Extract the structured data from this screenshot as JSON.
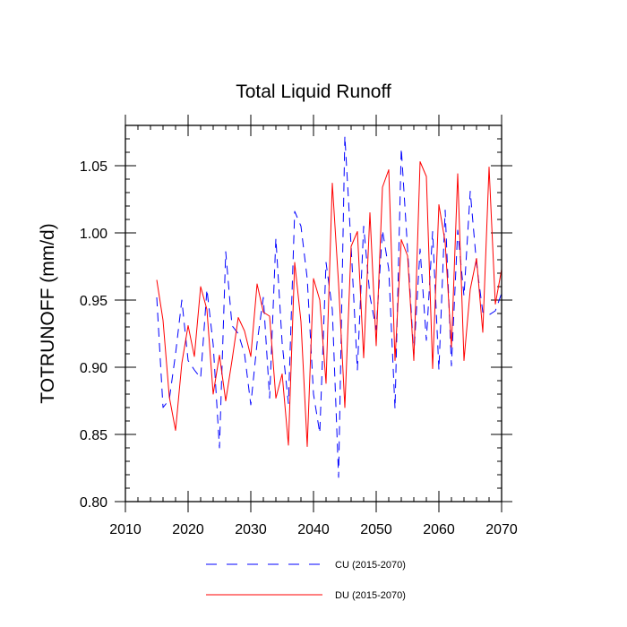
{
  "chart_data": {
    "type": "line",
    "title": "Total Liquid Runoff",
    "xlabel": "",
    "ylabel": "TOTRUNOFF  (mm/d)",
    "xlim": [
      2010,
      2070
    ],
    "ylim": [
      0.8,
      1.08
    ],
    "x_ticks": [
      2010,
      2020,
      2030,
      2040,
      2050,
      2060,
      2070
    ],
    "x_tick_labels": [
      "2010",
      "2020",
      "2030",
      "2040",
      "2050",
      "2060",
      "2070"
    ],
    "y_ticks": [
      0.8,
      0.85,
      0.9,
      0.95,
      1.0,
      1.05
    ],
    "y_tick_labels": [
      "0.80",
      "0.85",
      "0.90",
      "0.95",
      "1.00",
      "1.05"
    ],
    "grid": false,
    "legend": "bottom",
    "x": [
      2015,
      2016,
      2017,
      2018,
      2019,
      2020,
      2021,
      2022,
      2023,
      2024,
      2025,
      2026,
      2027,
      2028,
      2029,
      2030,
      2031,
      2032,
      2033,
      2034,
      2035,
      2036,
      2037,
      2038,
      2039,
      2040,
      2041,
      2042,
      2043,
      2044,
      2045,
      2046,
      2047,
      2048,
      2049,
      2050,
      2051,
      2052,
      2053,
      2054,
      2055,
      2056,
      2057,
      2058,
      2059,
      2060,
      2061,
      2062,
      2063,
      2064,
      2065,
      2066,
      2067,
      2068,
      2069,
      2070
    ],
    "series": [
      {
        "name": "CU (2015-2070)",
        "color": "#0000ff",
        "dash": "dashed",
        "values": [
          0.952,
          0.87,
          0.876,
          0.91,
          0.95,
          0.905,
          0.898,
          0.892,
          0.958,
          0.917,
          0.84,
          0.986,
          0.931,
          0.925,
          0.91,
          0.872,
          0.918,
          0.952,
          0.877,
          0.996,
          0.918,
          0.873,
          1.016,
          1.005,
          0.966,
          0.88,
          0.851,
          0.978,
          0.943,
          0.818,
          1.072,
          0.99,
          0.898,
          1.005,
          0.953,
          0.928,
          1.002,
          0.973,
          0.869,
          1.063,
          0.988,
          0.909,
          0.988,
          0.92,
          1.001,
          0.898,
          1.017,
          0.901,
          1.002,
          0.953,
          1.031,
          0.977,
          0.941,
          0.939,
          0.942,
          0.955
        ]
      },
      {
        "name": "DU (2015-2070)",
        "color": "#ff0000",
        "dash": "solid",
        "values": [
          0.965,
          0.935,
          0.878,
          0.853,
          0.903,
          0.931,
          0.908,
          0.96,
          0.943,
          0.88,
          0.909,
          0.875,
          0.905,
          0.937,
          0.927,
          0.908,
          0.962,
          0.941,
          0.938,
          0.877,
          0.895,
          0.842,
          0.978,
          0.934,
          0.841,
          0.966,
          0.95,
          0.888,
          1.037,
          0.962,
          0.87,
          0.99,
          1.001,
          0.907,
          1.015,
          0.916,
          1.034,
          1.047,
          0.905,
          0.995,
          0.983,
          0.905,
          1.053,
          1.042,
          0.899,
          1.021,
          0.993,
          0.915,
          1.044,
          0.905,
          0.958,
          0.981,
          0.926,
          1.049,
          0.947,
          0.973
        ]
      }
    ]
  }
}
